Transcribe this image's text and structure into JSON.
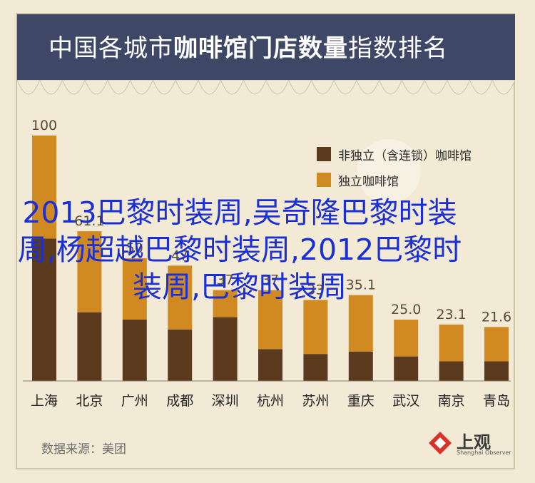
{
  "chart_data": {
    "type": "bar",
    "stacked": true,
    "title_normal": "中国各城市",
    "title_bold": "咖啡馆门店数量",
    "title_rest": "指数排名",
    "categories": [
      "上海",
      "北京",
      "广州",
      "成都",
      "深圳",
      "杭州",
      "苏州",
      "重庆",
      "武汉",
      "南京",
      "青岛"
    ],
    "totals_labels": [
      "100",
      "61.1",
      "50",
      "47",
      "37",
      "37",
      "33",
      "35.1",
      "25.0",
      "23.1",
      "21.6"
    ],
    "series": [
      {
        "name": "非独立（含连锁）咖啡馆",
        "color": "#5c3a1e",
        "values": [
          58,
          28,
          25,
          21,
          26,
          13,
          11,
          12,
          10,
          8,
          8
        ]
      },
      {
        "name": "独立咖啡馆",
        "color": "#d18a22",
        "values": [
          42,
          33,
          25,
          26,
          11,
          24,
          22,
          23,
          15,
          15,
          14
        ]
      }
    ],
    "ylim": [
      0,
      100
    ],
    "legend_position": "top-right"
  },
  "source": "数据来源：美团",
  "logo": {
    "name": "上观",
    "sub": "Shanghai Observer"
  },
  "overlay": "2013巴黎时装周,吴奇隆巴黎时装周,杨超越巴黎时装周,2012巴黎时装周,巴黎时装周",
  "colors": {
    "title_bg": "#3f4766",
    "background": "#f3ead6",
    "overlay": "#1a2fd6"
  }
}
